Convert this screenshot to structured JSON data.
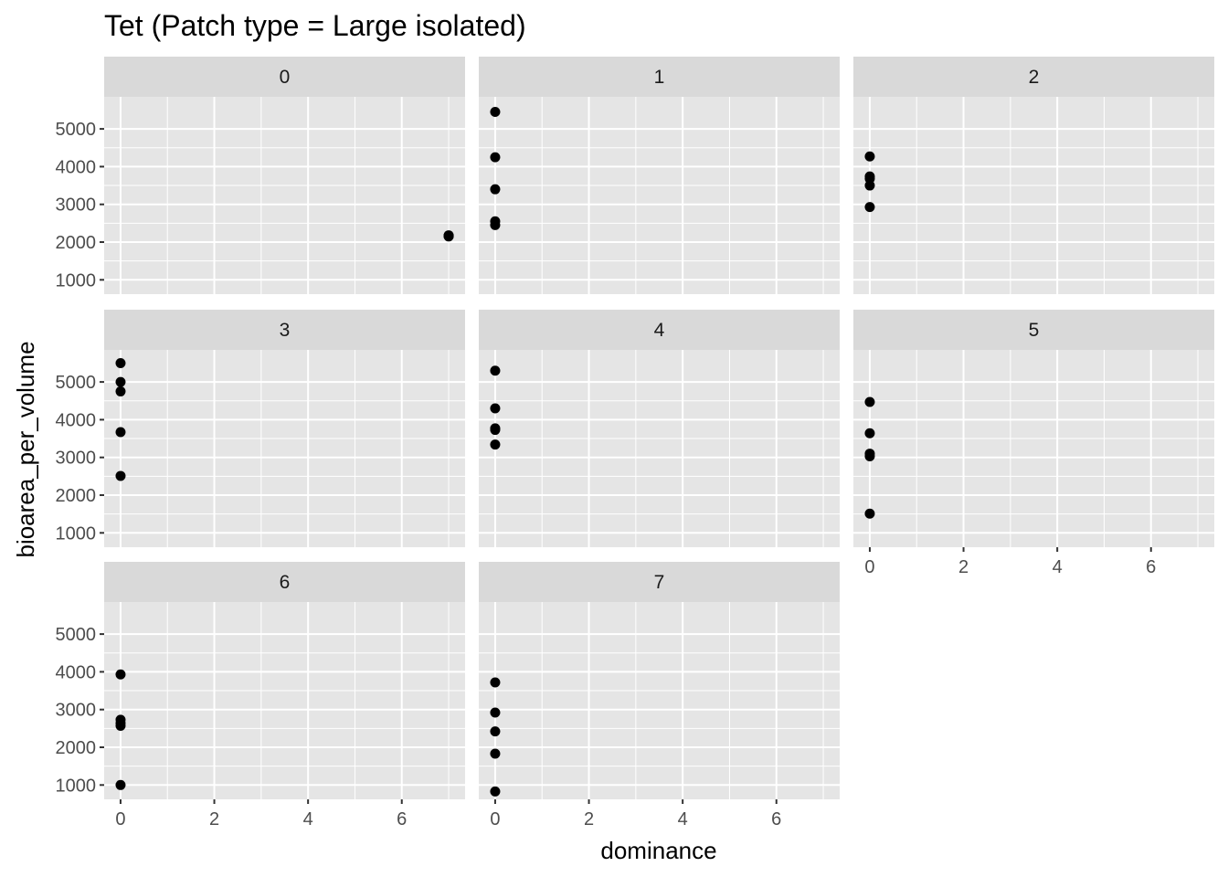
{
  "chart_data": {
    "type": "scatter",
    "title": "Tet (Patch type = Large isolated)",
    "xlabel": "dominance",
    "ylabel": "bioarea_per_volume",
    "xlim": [
      -0.35,
      7.35
    ],
    "ylim": [
      620,
      5850
    ],
    "x_ticks": [
      0,
      2,
      4,
      6
    ],
    "y_ticks": [
      1000,
      2000,
      3000,
      4000,
      5000
    ],
    "grid": true,
    "facet_ncol": 3,
    "point_color": "#000000",
    "panel_background": "#e5e5e5",
    "strip_background": "#d9d9d9",
    "grid_color": "#ffffff",
    "panels": [
      {
        "label": "0",
        "x": [
          7,
          7,
          7,
          7,
          7
        ],
        "y": [
          2160,
          2170,
          2150,
          2180,
          2165
        ]
      },
      {
        "label": "1",
        "x": [
          0,
          0,
          0,
          0,
          0
        ],
        "y": [
          5450,
          4250,
          3400,
          2550,
          2450
        ]
      },
      {
        "label": "2",
        "x": [
          0,
          0,
          0,
          0,
          0
        ],
        "y": [
          4270,
          3740,
          3680,
          3500,
          2930
        ]
      },
      {
        "label": "3",
        "x": [
          0,
          0,
          0,
          0,
          0
        ],
        "y": [
          5500,
          5000,
          4750,
          3670,
          2510
        ]
      },
      {
        "label": "4",
        "x": [
          0,
          0,
          0,
          0,
          0
        ],
        "y": [
          5300,
          4300,
          3770,
          3730,
          3340
        ]
      },
      {
        "label": "5",
        "x": [
          0,
          0,
          0,
          0,
          0
        ],
        "y": [
          4470,
          3640,
          3100,
          3030,
          1510
        ]
      },
      {
        "label": "6",
        "x": [
          0,
          0,
          0,
          0,
          0
        ],
        "y": [
          3930,
          2730,
          2640,
          2570,
          1000
        ]
      },
      {
        "label": "7",
        "x": [
          0,
          0,
          0,
          0,
          0
        ],
        "y": [
          3720,
          2920,
          2420,
          1830,
          830
        ]
      }
    ]
  }
}
